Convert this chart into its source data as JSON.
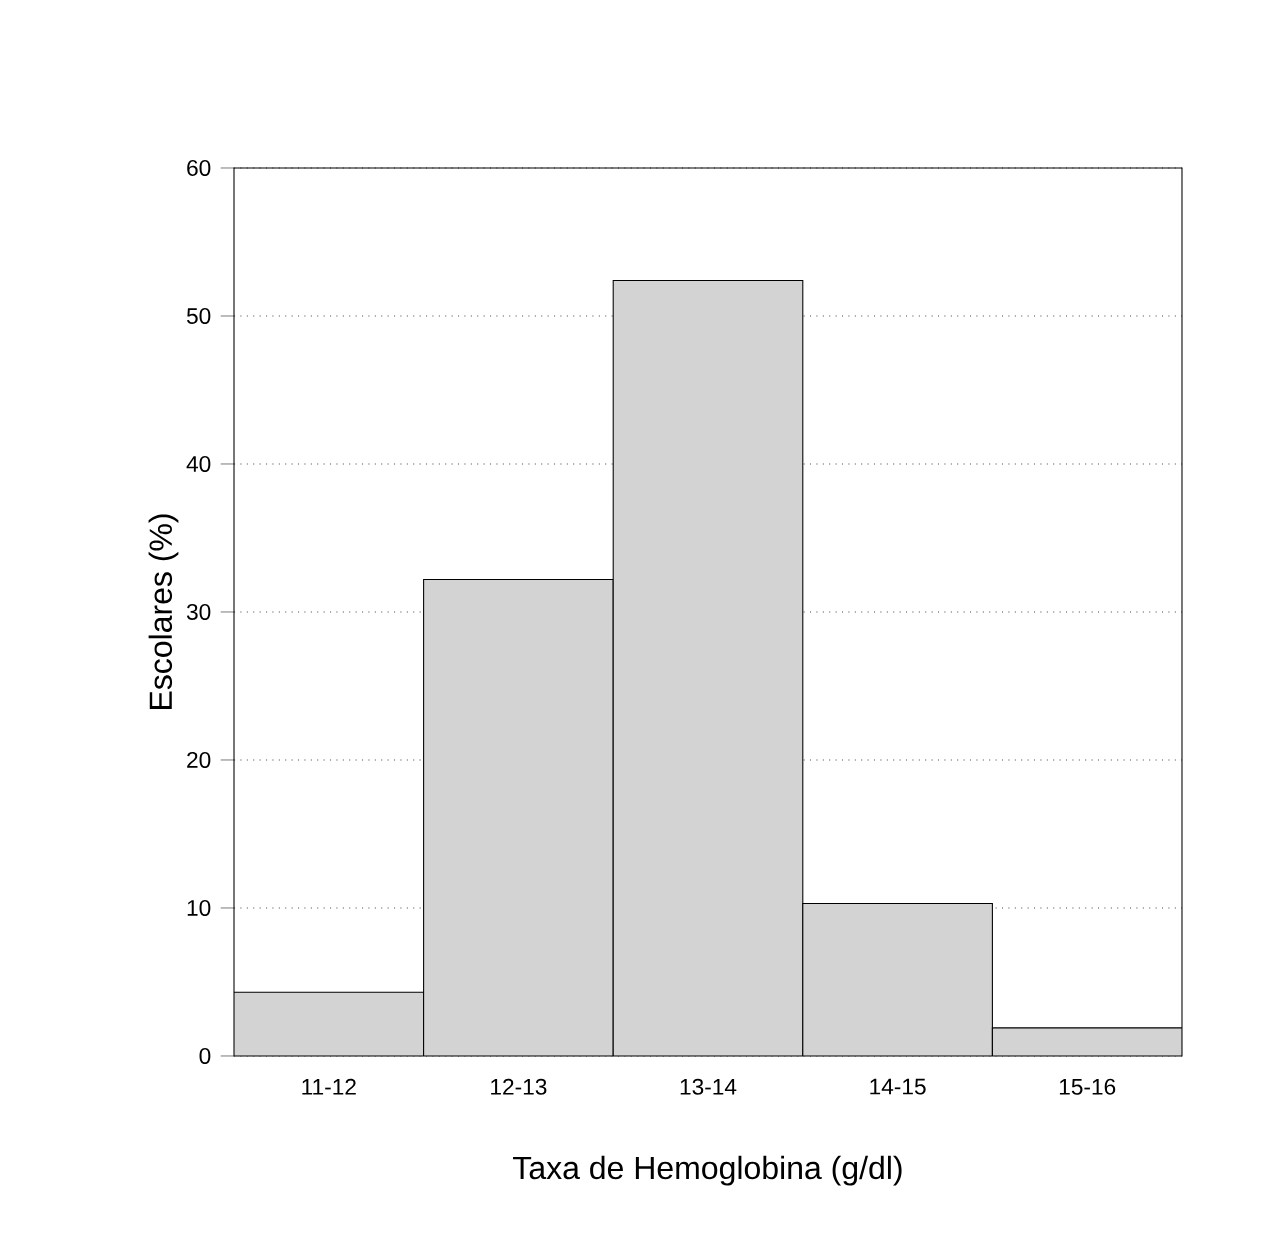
{
  "chart_data": {
    "type": "bar",
    "xlabel": "Taxa de Hemoglobina (g/dl)",
    "ylabel": "Escolares (%)",
    "categories": [
      "11-12",
      "12-13",
      "13-14",
      "14-15",
      "15-16"
    ],
    "values": [
      4.3,
      32.2,
      52.4,
      10.3,
      1.9
    ],
    "color": "#d3d3d3",
    "ylim": [
      0,
      60
    ],
    "yticks": [
      0,
      10,
      20,
      30,
      40,
      50,
      60
    ],
    "grid": "y"
  }
}
